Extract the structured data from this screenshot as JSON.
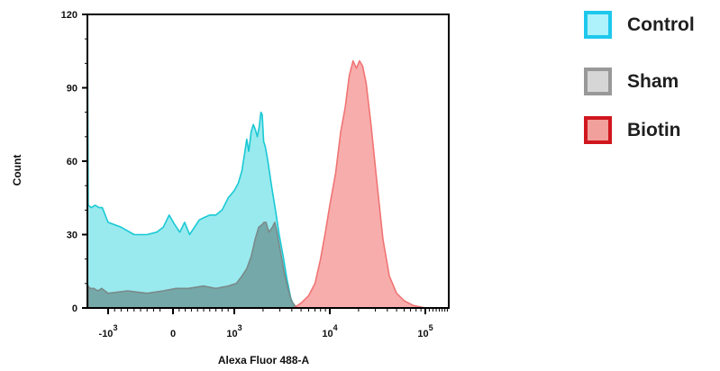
{
  "chart_data": {
    "type": "area",
    "title": "",
    "xlabel": "Alexa Fluor 488-A",
    "ylabel": "Count",
    "xscale": "biexponential",
    "xlim": [
      -2600,
      190000
    ],
    "ylim": [
      0,
      120
    ],
    "yticks": [
      0,
      30,
      60,
      90,
      120
    ],
    "ytick_labels": [
      "0",
      "30",
      "60",
      "90",
      "120"
    ],
    "xtick_labels": [
      {
        "value": -1000,
        "base": "-10",
        "exp": "3"
      },
      {
        "value": 0,
        "base": "0",
        "exp": ""
      },
      {
        "value": 1000,
        "base": "10",
        "exp": "3"
      },
      {
        "value": 10000,
        "base": "10",
        "exp": "4"
      },
      {
        "value": 100000,
        "base": "10",
        "exp": "5"
      }
    ],
    "grid": false,
    "legend_position": "right",
    "series": [
      {
        "name": "Control",
        "fill": "#8ee8ec",
        "stroke": "#19c9d4",
        "legend_fill": "#aef2fb",
        "legend_border": "#1ec8ec",
        "points": [
          [
            -2600,
            118
          ],
          [
            -2540,
            42
          ],
          [
            -2300,
            41
          ],
          [
            -2000,
            42
          ],
          [
            -1700,
            41
          ],
          [
            -1450,
            41
          ],
          [
            -1300,
            39
          ],
          [
            -1150,
            37
          ],
          [
            -1000,
            35
          ],
          [
            -800,
            33
          ],
          [
            -600,
            30
          ],
          [
            -400,
            30
          ],
          [
            -250,
            31
          ],
          [
            -150,
            33
          ],
          [
            -60,
            38
          ],
          [
            30,
            34
          ],
          [
            110,
            31
          ],
          [
            190,
            35
          ],
          [
            270,
            30
          ],
          [
            350,
            33
          ],
          [
            430,
            36
          ],
          [
            510,
            37
          ],
          [
            600,
            38
          ],
          [
            700,
            38
          ],
          [
            800,
            40
          ],
          [
            900,
            45
          ],
          [
            1000,
            48
          ],
          [
            1100,
            51
          ],
          [
            1200,
            56
          ],
          [
            1280,
            63
          ],
          [
            1350,
            69
          ],
          [
            1420,
            64
          ],
          [
            1500,
            72
          ],
          [
            1580,
            75
          ],
          [
            1660,
            73
          ],
          [
            1740,
            70
          ],
          [
            1820,
            74
          ],
          [
            1900,
            80
          ],
          [
            1960,
            79
          ],
          [
            2030,
            68
          ],
          [
            2110,
            66
          ],
          [
            2250,
            60
          ],
          [
            2450,
            50
          ],
          [
            2700,
            40
          ],
          [
            2950,
            30
          ],
          [
            3250,
            21
          ],
          [
            3550,
            12
          ],
          [
            3900,
            4
          ],
          [
            4200,
            1
          ],
          [
            4400,
            0
          ]
        ]
      },
      {
        "name": "Sham",
        "fill": "#6f9c9c",
        "stroke": "#7a8a8a",
        "legend_fill": "#d6d6d6",
        "legend_border": "#999999",
        "points": [
          [
            -2540,
            9
          ],
          [
            -2400,
            8
          ],
          [
            -2100,
            8
          ],
          [
            -1800,
            7
          ],
          [
            -1500,
            8
          ],
          [
            -1250,
            7
          ],
          [
            -1000,
            6
          ],
          [
            -700,
            7
          ],
          [
            -400,
            6
          ],
          [
            -150,
            7
          ],
          [
            50,
            8
          ],
          [
            250,
            8
          ],
          [
            500,
            9
          ],
          [
            700,
            8
          ],
          [
            900,
            9
          ],
          [
            1050,
            10
          ],
          [
            1200,
            13
          ],
          [
            1350,
            16
          ],
          [
            1500,
            21
          ],
          [
            1650,
            28
          ],
          [
            1800,
            33
          ],
          [
            1950,
            34
          ],
          [
            2050,
            35
          ],
          [
            2150,
            35
          ],
          [
            2300,
            31
          ],
          [
            2500,
            33
          ],
          [
            2650,
            35
          ],
          [
            2800,
            31
          ],
          [
            3050,
            23
          ],
          [
            3350,
            14
          ],
          [
            3650,
            8
          ],
          [
            3950,
            3
          ],
          [
            4300,
            1
          ],
          [
            4700,
            0
          ]
        ]
      },
      {
        "name": "Biotin",
        "fill": "#f7a4a4",
        "stroke": "#f07474",
        "legend_fill": "#f2a09c",
        "legend_border": "#d0171f",
        "points": [
          [
            4200,
            0
          ],
          [
            5000,
            2
          ],
          [
            6000,
            5
          ],
          [
            7000,
            10
          ],
          [
            8000,
            20
          ],
          [
            9000,
            31
          ],
          [
            10000,
            42
          ],
          [
            11500,
            55
          ],
          [
            13000,
            72
          ],
          [
            14500,
            82
          ],
          [
            16000,
            95
          ],
          [
            17500,
            101
          ],
          [
            19000,
            98
          ],
          [
            20500,
            101
          ],
          [
            22000,
            99
          ],
          [
            24000,
            92
          ],
          [
            27000,
            75
          ],
          [
            31000,
            52
          ],
          [
            36000,
            28
          ],
          [
            42000,
            13
          ],
          [
            50000,
            6
          ],
          [
            60000,
            3
          ],
          [
            75000,
            1
          ],
          [
            100000,
            0
          ]
        ]
      }
    ]
  }
}
